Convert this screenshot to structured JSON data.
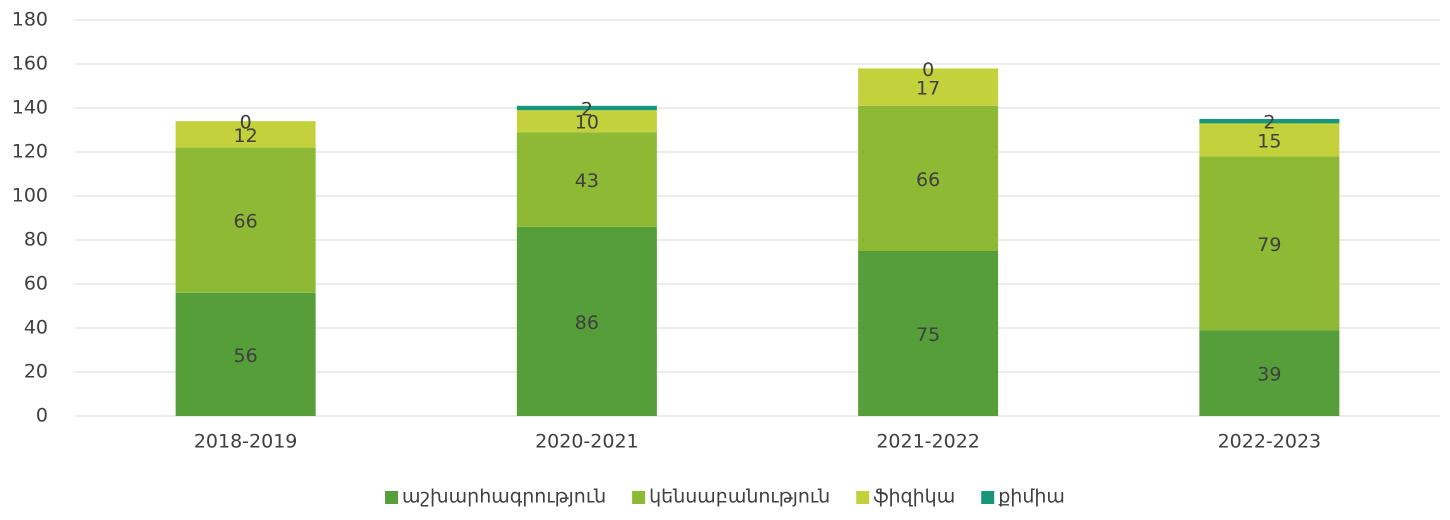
{
  "chart_data": {
    "type": "stacked_bar",
    "categories": [
      "2018-2019",
      "2020-2021",
      "2021-2022",
      "2022-2023"
    ],
    "series": [
      {
        "name": "աշխարհագրություն",
        "color": "#559e3a",
        "values": [
          56,
          86,
          75,
          39
        ]
      },
      {
        "name": "կենսաբանություն",
        "color": "#8db935",
        "values": [
          66,
          43,
          66,
          79
        ]
      },
      {
        "name": "ֆիզիկա",
        "color": "#c3d13d",
        "values": [
          12,
          10,
          17,
          15
        ]
      },
      {
        "name": "քիմիա",
        "color": "#17967a",
        "values": [
          0,
          2,
          0,
          2
        ]
      }
    ],
    "ylim": [
      0,
      180
    ],
    "yticks": [
      0,
      20,
      40,
      60,
      80,
      100,
      120,
      140,
      160,
      180
    ],
    "grid": true,
    "legend": "bottom"
  }
}
